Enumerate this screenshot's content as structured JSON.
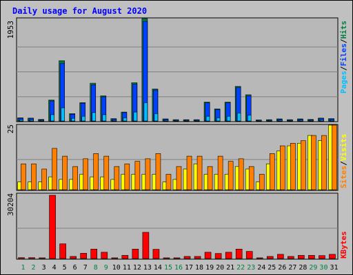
{
  "title": "Daily usage for August 2020",
  "axis_max_labels": {
    "hits": "1953",
    "visits": "25",
    "kbytes": "30204"
  },
  "legend": {
    "pages": "Pages",
    "files": "Files",
    "hits": "Hits",
    "sep": "/",
    "sites": "Sites",
    "visits": "Visits",
    "kbytes": "KBytes"
  },
  "colors": {
    "background": "#c0c0c0",
    "plot_bg": "#b8b8b8",
    "title": "#0000ff",
    "pages": "#00c0ff",
    "files": "#0040ff",
    "hits": "#008040",
    "sites": "#ff8000",
    "visits": "#ffff00",
    "kbytes": "#ff0000",
    "weekday_label": "#000000",
    "weekend_label": "#008040"
  },
  "chart_data": [
    {
      "type": "bar",
      "title": "Daily usage for August 2020",
      "ylabel": "",
      "ylim": [
        0,
        1953
      ],
      "categories": [
        "1",
        "2",
        "3",
        "4",
        "5",
        "6",
        "7",
        "8",
        "9",
        "10",
        "11",
        "12",
        "13",
        "14",
        "15",
        "16",
        "17",
        "18",
        "19",
        "20",
        "21",
        "22",
        "23",
        "24",
        "25",
        "26",
        "27",
        "28",
        "29",
        "30",
        "31"
      ],
      "weekend_days": [
        "1",
        "2",
        "8",
        "9",
        "15",
        "16",
        "22",
        "23",
        "29",
        "30"
      ],
      "series": [
        {
          "name": "Hits",
          "values": [
            60,
            55,
            30,
            400,
            1150,
            140,
            350,
            720,
            480,
            45,
            170,
            730,
            1953,
            610,
            40,
            25,
            25,
            25,
            360,
            230,
            360,
            660,
            500,
            20,
            25,
            40,
            25,
            40,
            30,
            55,
            45
          ]
        },
        {
          "name": "Files",
          "values": [
            55,
            50,
            25,
            380,
            1100,
            130,
            340,
            690,
            460,
            40,
            160,
            700,
            1900,
            590,
            35,
            20,
            20,
            20,
            345,
            220,
            345,
            640,
            480,
            15,
            20,
            35,
            20,
            35,
            25,
            50,
            40
          ]
        },
        {
          "name": "Pages",
          "values": [
            25,
            20,
            10,
            120,
            250,
            50,
            90,
            160,
            120,
            15,
            60,
            170,
            350,
            140,
            15,
            10,
            10,
            10,
            90,
            60,
            90,
            150,
            110,
            5,
            10,
            15,
            10,
            15,
            10,
            20,
            15
          ]
        }
      ]
    },
    {
      "type": "bar",
      "ylim": [
        0,
        25
      ],
      "categories": [
        "1",
        "2",
        "3",
        "4",
        "5",
        "6",
        "7",
        "8",
        "9",
        "10",
        "11",
        "12",
        "13",
        "14",
        "15",
        "16",
        "17",
        "18",
        "19",
        "20",
        "21",
        "22",
        "23",
        "24",
        "25",
        "26",
        "27",
        "28",
        "29",
        "30",
        "31"
      ],
      "series": [
        {
          "name": "Visits",
          "values": [
            3,
            3,
            3,
            5,
            4,
            4,
            6,
            5,
            5,
            4,
            6,
            6,
            6,
            6,
            3,
            4,
            8,
            10,
            6,
            6,
            6,
            9,
            8,
            3,
            10,
            15,
            17,
            18,
            21,
            19,
            25
          ]
        },
        {
          "name": "Sites",
          "values": [
            10,
            10,
            8,
            16,
            13,
            9,
            12,
            14,
            13,
            9,
            10,
            11,
            12,
            14,
            6,
            9,
            13,
            13,
            9,
            13,
            11,
            12,
            9,
            6,
            14,
            17,
            18,
            19,
            21,
            21,
            25
          ]
        }
      ]
    },
    {
      "type": "bar",
      "ylim": [
        0,
        30204
      ],
      "categories": [
        "1",
        "2",
        "3",
        "4",
        "5",
        "6",
        "7",
        "8",
        "9",
        "10",
        "11",
        "12",
        "13",
        "14",
        "15",
        "16",
        "17",
        "18",
        "19",
        "20",
        "21",
        "22",
        "23",
        "24",
        "25",
        "26",
        "27",
        "28",
        "29",
        "30",
        "31"
      ],
      "series": [
        {
          "name": "KBytes",
          "values": [
            400,
            400,
            300,
            30204,
            7000,
            1000,
            2500,
            4500,
            3000,
            300,
            1500,
            4500,
            12500,
            4400,
            300,
            300,
            1000,
            1000,
            3000,
            2400,
            3000,
            4500,
            3400,
            300,
            1000,
            2000,
            1000,
            1500,
            1500,
            1400,
            2000
          ]
        }
      ]
    }
  ]
}
